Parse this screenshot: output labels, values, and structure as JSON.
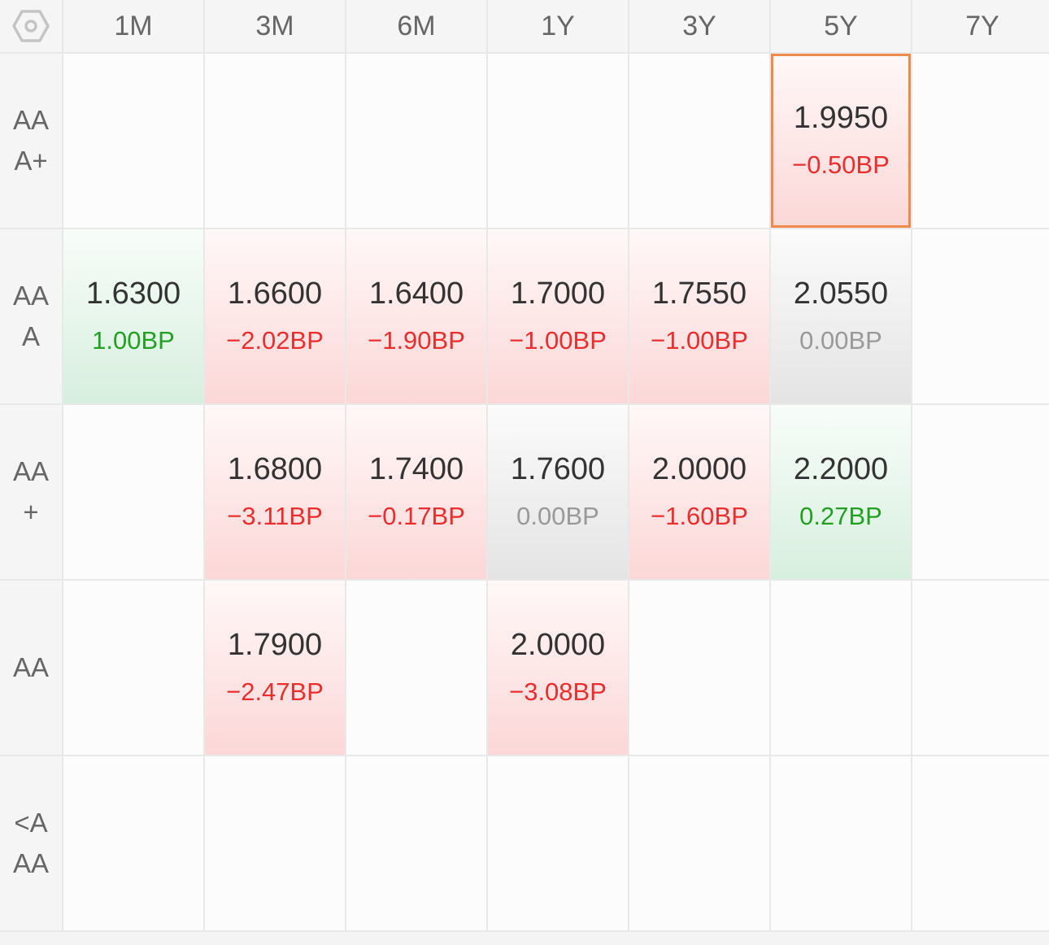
{
  "columns": [
    "1M",
    "3M",
    "6M",
    "1Y",
    "3Y",
    "5Y",
    "7Y"
  ],
  "rows": [
    {
      "label": "AAA+",
      "cells": [
        null,
        null,
        null,
        null,
        null,
        {
          "value": "1.9950",
          "change": "−0.50BP",
          "dir": "down",
          "selected": true
        },
        null
      ]
    },
    {
      "label": "AAA",
      "cells": [
        {
          "value": "1.6300",
          "change": "1.00BP",
          "dir": "up"
        },
        {
          "value": "1.6600",
          "change": "−2.02BP",
          "dir": "down"
        },
        {
          "value": "1.6400",
          "change": "−1.90BP",
          "dir": "down"
        },
        {
          "value": "1.7000",
          "change": "−1.00BP",
          "dir": "down"
        },
        {
          "value": "1.7550",
          "change": "−1.00BP",
          "dir": "down"
        },
        {
          "value": "2.0550",
          "change": "0.00BP",
          "dir": "flat"
        },
        null
      ]
    },
    {
      "label": "AA+",
      "cells": [
        null,
        {
          "value": "1.6800",
          "change": "−3.11BP",
          "dir": "down"
        },
        {
          "value": "1.7400",
          "change": "−0.17BP",
          "dir": "down"
        },
        {
          "value": "1.7600",
          "change": "0.00BP",
          "dir": "flat"
        },
        {
          "value": "2.0000",
          "change": "−1.60BP",
          "dir": "down"
        },
        {
          "value": "2.2000",
          "change": "0.27BP",
          "dir": "up"
        },
        null
      ]
    },
    {
      "label": "AA",
      "cells": [
        null,
        {
          "value": "1.7900",
          "change": "−2.47BP",
          "dir": "down"
        },
        null,
        {
          "value": "2.0000",
          "change": "−3.08BP",
          "dir": "down"
        },
        null,
        null,
        null
      ]
    },
    {
      "label": "<AAA",
      "cells": [
        null,
        null,
        null,
        null,
        null,
        null,
        null
      ]
    }
  ],
  "icons": {
    "corner": "settings-hexagon-icon"
  },
  "colors": {
    "down": "#ea2d2d",
    "up": "#22a022",
    "flat": "#999999",
    "selected_border": "#f08a4b"
  }
}
